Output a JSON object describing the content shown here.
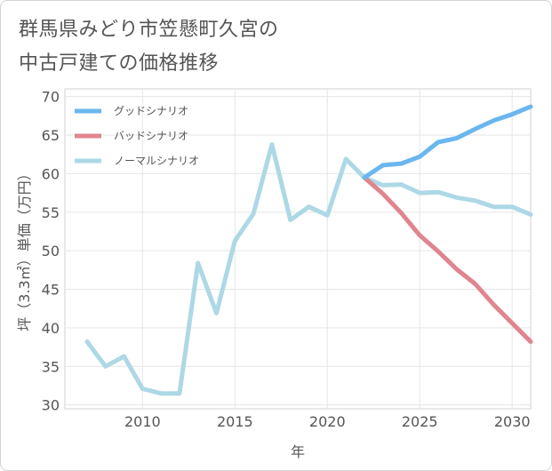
{
  "chart_data": {
    "type": "line",
    "title": "群馬県みどり市笠懸町久宮の\n中古戸建ての価格推移",
    "xlabel": "年",
    "ylabel": "坪（3.3㎡）単価（万円）",
    "xlim": [
      2005.8,
      2031
    ],
    "ylim": [
      29.5,
      71
    ],
    "x_ticks": [
      2010,
      2015,
      2020,
      2025,
      2030
    ],
    "y_ticks": [
      30,
      35,
      40,
      45,
      50,
      55,
      60,
      65,
      70
    ],
    "grid": true,
    "legend_position": "top-left",
    "series": [
      {
        "name": "グッドシナリオ",
        "color": "#6ab7ef",
        "points": [
          [
            2022,
            59.5
          ],
          [
            2023,
            61.1
          ],
          [
            2024,
            61.3
          ],
          [
            2025,
            62.2
          ],
          [
            2026,
            64.1
          ],
          [
            2027,
            64.6
          ],
          [
            2028,
            65.8
          ],
          [
            2029,
            66.9
          ],
          [
            2030,
            67.7
          ],
          [
            2031,
            68.7
          ]
        ]
      },
      {
        "name": "バッドシナリオ",
        "color": "#e0858f",
        "points": [
          [
            2022,
            59.5
          ],
          [
            2023,
            57.4
          ],
          [
            2024,
            54.9
          ],
          [
            2025,
            52.0
          ],
          [
            2026,
            49.9
          ],
          [
            2027,
            47.6
          ],
          [
            2028,
            45.7
          ],
          [
            2029,
            43.0
          ],
          [
            2030,
            40.6
          ],
          [
            2031,
            38.2
          ]
        ]
      },
      {
        "name": "ノーマルシナリオ",
        "color": "#add8e6",
        "points": [
          [
            2007,
            38.2
          ],
          [
            2008,
            35.0
          ],
          [
            2009,
            36.3
          ],
          [
            2010,
            32.1
          ],
          [
            2011,
            31.5
          ],
          [
            2012,
            31.5
          ],
          [
            2013,
            48.4
          ],
          [
            2014,
            41.9
          ],
          [
            2015,
            51.3
          ],
          [
            2016,
            54.8
          ],
          [
            2017,
            63.8
          ],
          [
            2018,
            54.0
          ],
          [
            2019,
            55.7
          ],
          [
            2020,
            54.6
          ],
          [
            2021,
            61.9
          ],
          [
            2022,
            59.5
          ],
          [
            2023,
            58.5
          ],
          [
            2024,
            58.6
          ],
          [
            2025,
            57.5
          ],
          [
            2026,
            57.6
          ],
          [
            2027,
            56.9
          ],
          [
            2028,
            56.5
          ],
          [
            2029,
            55.7
          ],
          [
            2030,
            55.7
          ],
          [
            2031,
            54.7
          ]
        ]
      }
    ]
  }
}
